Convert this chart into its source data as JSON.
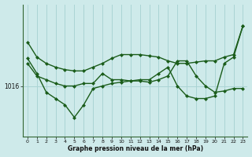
{
  "xlabel": "Graphe pression niveau de la mer (hPa)",
  "x_ticks": [
    0,
    1,
    2,
    3,
    4,
    5,
    6,
    7,
    8,
    9,
    10,
    11,
    12,
    13,
    14,
    15,
    16,
    17,
    18,
    19,
    20,
    21,
    22,
    23
  ],
  "background_color": "#ceeaea",
  "grid_color": "#aad4d4",
  "line_color": "#1a5c1a",
  "line1_x": [
    0,
    1,
    2,
    3,
    4,
    5,
    6,
    7,
    8,
    9,
    10,
    11,
    12,
    13,
    14,
    15,
    16,
    17,
    18,
    19,
    20,
    21,
    22,
    23
  ],
  "line1_y": [
    1019.5,
    1018.3,
    1017.8,
    1017.5,
    1017.3,
    1017.2,
    1017.2,
    1017.5,
    1017.8,
    1018.2,
    1018.5,
    1018.5,
    1018.5,
    1018.4,
    1018.3,
    1018.0,
    1017.8,
    1017.8,
    1017.9,
    1018.0,
    1018.0,
    1018.3,
    1018.5,
    1020.8
  ],
  "line2_x": [
    0,
    1,
    2,
    3,
    4,
    5,
    6,
    7,
    8,
    9,
    10,
    11,
    12,
    13,
    14,
    15,
    16,
    17,
    18,
    19,
    20,
    21,
    22,
    23
  ],
  "line2_y": [
    1017.8,
    1016.8,
    1016.5,
    1016.2,
    1016.0,
    1016.0,
    1016.2,
    1016.2,
    1017.0,
    1016.5,
    1016.5,
    1016.4,
    1016.4,
    1016.3,
    1016.5,
    1016.8,
    1018.0,
    1018.0,
    1016.8,
    1016.0,
    1015.5,
    1015.6,
    1015.8,
    1015.8
  ],
  "line3_x": [
    0,
    1,
    2,
    3,
    4,
    5,
    6,
    7,
    8,
    9,
    10,
    11,
    12,
    13,
    14,
    15,
    16,
    17,
    18,
    19,
    20,
    21,
    22,
    23
  ],
  "line3_y": [
    1018.2,
    1017.0,
    1015.5,
    1015.0,
    1014.5,
    1013.5,
    1014.5,
    1015.8,
    1016.0,
    1016.2,
    1016.3,
    1016.4,
    1016.5,
    1016.5,
    1017.0,
    1017.5,
    1016.0,
    1015.2,
    1015.0,
    1015.0,
    1015.2,
    1017.8,
    1018.3,
    1020.8
  ],
  "ylim": [
    1012.0,
    1022.5
  ],
  "xlim": [
    -0.5,
    23.5
  ],
  "ytick_label": "1016",
  "ytick_val": 1016
}
